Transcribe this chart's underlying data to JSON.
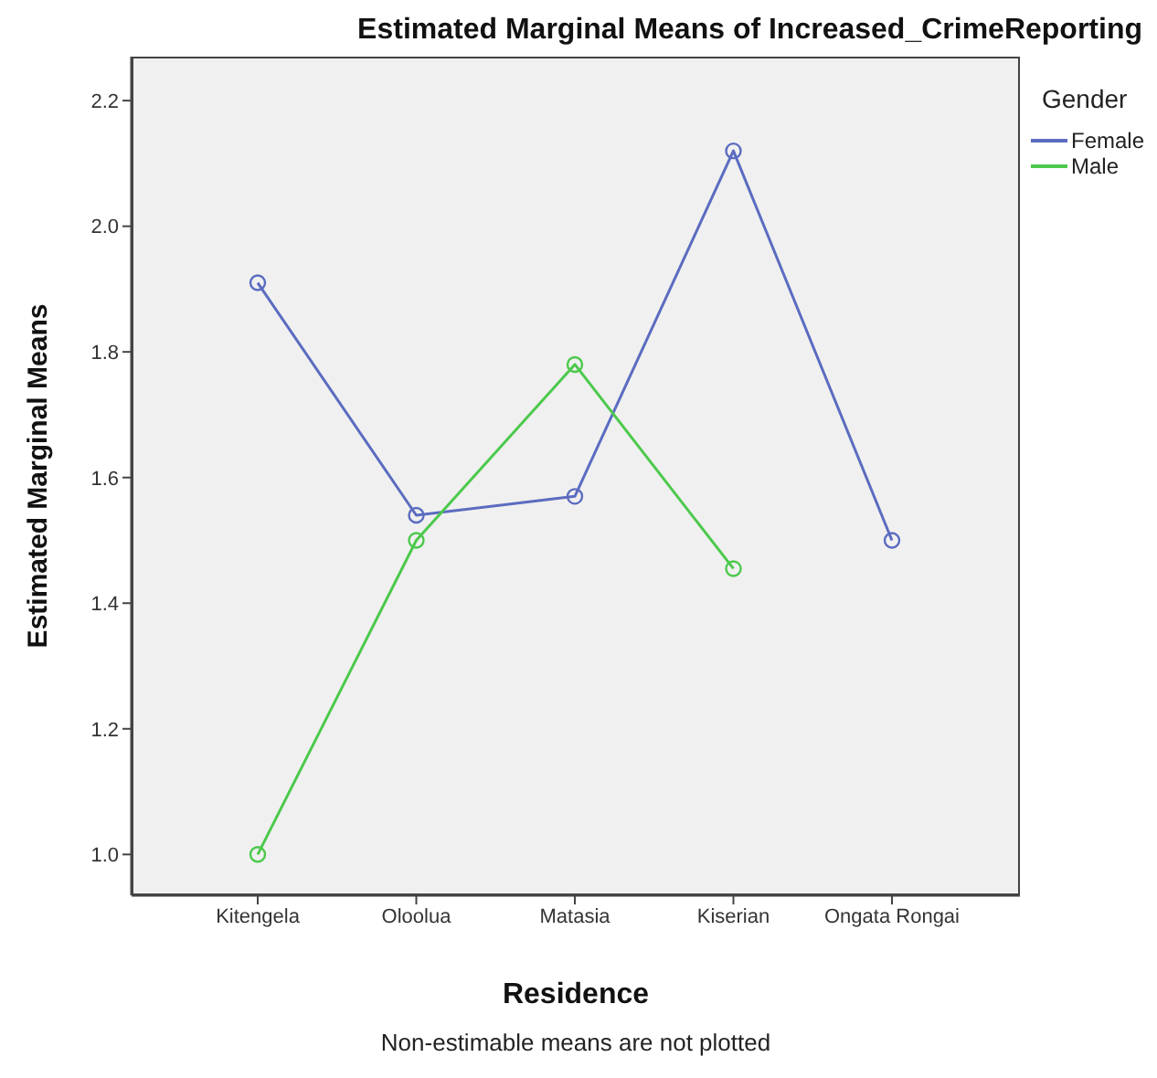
{
  "chart_data": {
    "type": "line",
    "title": "Estimated Marginal Means of Increased_CrimeReporting",
    "xlabel": "Residence",
    "ylabel": "Estimated Marginal Means",
    "legend_title": "Gender",
    "annotations": [
      "Non-estimable means are not plotted"
    ],
    "categories": [
      "Kitengela",
      "Oloolua",
      "Matasia",
      "Kiserian",
      "Ongata Rongai"
    ],
    "series": [
      {
        "name": "Female",
        "color": "#5b6cc0",
        "values": [
          1.91,
          1.54,
          1.57,
          2.12,
          1.5
        ]
      },
      {
        "name": "Male",
        "color": "#4cc94c",
        "values": [
          1.0,
          1.5,
          1.78,
          1.455,
          null
        ]
      }
    ],
    "ylim": [
      0.935,
      2.27
    ],
    "yticks": [
      {
        "value": 1,
        "label": "1.0"
      },
      {
        "value": 1.2,
        "label": "1.2"
      },
      {
        "value": 1.4,
        "label": "1.4"
      },
      {
        "value": 1.6,
        "label": "1.6"
      },
      {
        "value": 1.8,
        "label": "1.8"
      },
      {
        "value": 2,
        "label": "2.0"
      },
      {
        "value": 2.2,
        "label": "2.2"
      }
    ],
    "grid": false,
    "legend": "top right",
    "marker": "circle",
    "line_style": "solid"
  }
}
